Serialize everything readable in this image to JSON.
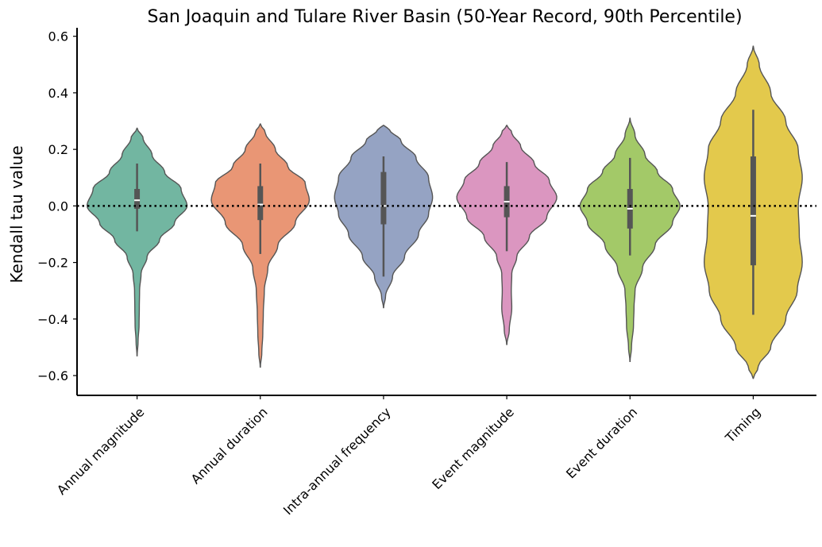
{
  "chart_data": {
    "type": "violin",
    "title": "San Joaquin and Tulare River Basin (50-Year Record, 90th Percentile)",
    "xlabel": "",
    "ylabel": "Kendall tau value",
    "ylim": [
      -0.67,
      0.63
    ],
    "yticks": [
      -0.6,
      -0.4,
      -0.2,
      0.0,
      0.2,
      0.4,
      0.6
    ],
    "ytick_labels": [
      "−0.6",
      "−0.4",
      "−0.2",
      "0.0",
      "0.2",
      "0.4",
      "0.6"
    ],
    "reference_line": {
      "y": 0.0,
      "style": "dotted",
      "color": "#000000"
    },
    "grid": false,
    "categories": [
      "Annual magnitude",
      "Annual duration",
      "Intra-annual frequency",
      "Event magnitude",
      "Event duration",
      "Timing"
    ],
    "series": [
      {
        "category": "Annual magnitude",
        "color": "#72b6a1",
        "min_extent": -0.53,
        "max_extent": 0.275,
        "whisker_low": -0.09,
        "whisker_high": 0.15,
        "q1": -0.01,
        "q3": 0.06,
        "median": 0.02,
        "density": [
          [
            -0.53,
            0.002
          ],
          [
            -0.48,
            0.02
          ],
          [
            -0.42,
            0.04
          ],
          [
            -0.36,
            0.045
          ],
          [
            -0.3,
            0.05
          ],
          [
            -0.24,
            0.08
          ],
          [
            -0.18,
            0.2
          ],
          [
            -0.12,
            0.45
          ],
          [
            -0.06,
            0.75
          ],
          [
            0.0,
            1.0
          ],
          [
            0.06,
            0.88
          ],
          [
            0.12,
            0.55
          ],
          [
            0.18,
            0.3
          ],
          [
            0.24,
            0.12
          ],
          [
            0.275,
            0.002
          ]
        ]
      },
      {
        "category": "Annual duration",
        "color": "#e99675",
        "min_extent": -0.57,
        "max_extent": 0.29,
        "whisker_low": -0.17,
        "whisker_high": 0.15,
        "q1": -0.05,
        "q3": 0.07,
        "median": 0.005,
        "density": [
          [
            -0.57,
            0.002
          ],
          [
            -0.52,
            0.03
          ],
          [
            -0.45,
            0.05
          ],
          [
            -0.38,
            0.06
          ],
          [
            -0.3,
            0.08
          ],
          [
            -0.22,
            0.15
          ],
          [
            -0.14,
            0.35
          ],
          [
            -0.06,
            0.7
          ],
          [
            0.02,
            0.98
          ],
          [
            0.08,
            0.9
          ],
          [
            0.14,
            0.55
          ],
          [
            0.2,
            0.3
          ],
          [
            0.26,
            0.1
          ],
          [
            0.29,
            0.002
          ]
        ]
      },
      {
        "category": "Intra-annual frequency",
        "color": "#95a3c3",
        "min_extent": -0.36,
        "max_extent": 0.285,
        "whisker_low": -0.25,
        "whisker_high": 0.175,
        "q1": -0.065,
        "q3": 0.12,
        "median": 0.0,
        "density": [
          [
            -0.36,
            0.002
          ],
          [
            -0.32,
            0.04
          ],
          [
            -0.25,
            0.18
          ],
          [
            -0.18,
            0.42
          ],
          [
            -0.1,
            0.7
          ],
          [
            -0.03,
            0.9
          ],
          [
            0.03,
            0.98
          ],
          [
            0.1,
            0.9
          ],
          [
            0.17,
            0.65
          ],
          [
            0.23,
            0.35
          ],
          [
            0.27,
            0.12
          ],
          [
            0.285,
            0.002
          ]
        ]
      },
      {
        "category": "Event magnitude",
        "color": "#db96c0",
        "min_extent": -0.49,
        "max_extent": 0.285,
        "whisker_low": -0.16,
        "whisker_high": 0.155,
        "q1": -0.04,
        "q3": 0.07,
        "median": 0.015,
        "density": [
          [
            -0.49,
            0.002
          ],
          [
            -0.44,
            0.05
          ],
          [
            -0.36,
            0.1
          ],
          [
            -0.3,
            0.09
          ],
          [
            -0.24,
            0.1
          ],
          [
            -0.18,
            0.2
          ],
          [
            -0.11,
            0.45
          ],
          [
            -0.04,
            0.8
          ],
          [
            0.03,
            1.0
          ],
          [
            0.09,
            0.85
          ],
          [
            0.15,
            0.55
          ],
          [
            0.21,
            0.28
          ],
          [
            0.26,
            0.1
          ],
          [
            0.285,
            0.002
          ]
        ]
      },
      {
        "category": "Event duration",
        "color": "#a3c968",
        "min_extent": -0.55,
        "max_extent": 0.31,
        "whisker_low": -0.175,
        "whisker_high": 0.17,
        "q1": -0.08,
        "q3": 0.06,
        "median": -0.01,
        "density": [
          [
            -0.55,
            0.002
          ],
          [
            -0.5,
            0.03
          ],
          [
            -0.42,
            0.07
          ],
          [
            -0.36,
            0.08
          ],
          [
            -0.3,
            0.1
          ],
          [
            -0.22,
            0.25
          ],
          [
            -0.14,
            0.5
          ],
          [
            -0.06,
            0.85
          ],
          [
            0.0,
            1.0
          ],
          [
            0.06,
            0.85
          ],
          [
            0.12,
            0.55
          ],
          [
            0.18,
            0.3
          ],
          [
            0.25,
            0.1
          ],
          [
            0.31,
            0.002
          ]
        ]
      },
      {
        "category": "Timing",
        "color": "#e3c94c",
        "min_extent": -0.61,
        "max_extent": 0.565,
        "whisker_low": -0.385,
        "whisker_high": 0.34,
        "q1": -0.21,
        "q3": 0.175,
        "median": -0.035,
        "density": [
          [
            -0.61,
            0.002
          ],
          [
            -0.57,
            0.1
          ],
          [
            -0.5,
            0.35
          ],
          [
            -0.4,
            0.65
          ],
          [
            -0.3,
            0.88
          ],
          [
            -0.2,
            0.98
          ],
          [
            -0.1,
            0.92
          ],
          [
            0.0,
            0.9
          ],
          [
            0.1,
            0.98
          ],
          [
            0.2,
            0.9
          ],
          [
            0.3,
            0.65
          ],
          [
            0.4,
            0.35
          ],
          [
            0.5,
            0.12
          ],
          [
            0.565,
            0.002
          ]
        ]
      }
    ]
  }
}
